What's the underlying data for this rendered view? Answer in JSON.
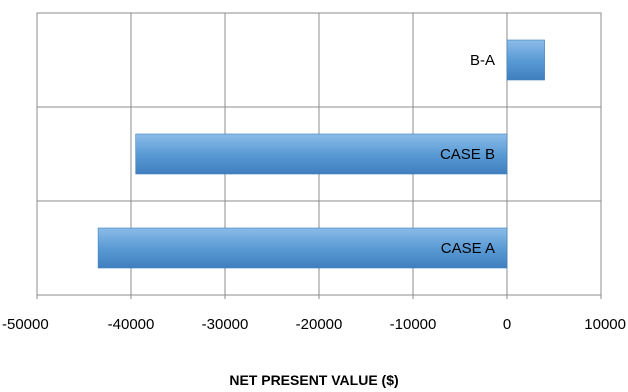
{
  "chart_data": {
    "type": "bar",
    "orientation": "horizontal",
    "categories": [
      "CASE A",
      "CASE B",
      "B-A"
    ],
    "values": [
      -43500,
      -39500,
      4000
    ],
    "xlabel": "NET PRESENT VALUE ($)",
    "ylabel": "",
    "xlim": [
      -50000,
      10000
    ],
    "xticks": [
      "-50000",
      "-40000",
      "-30000",
      "-20000",
      "-10000",
      "0",
      "10000"
    ],
    "grid": true,
    "legend": "none",
    "bar_color": "#5b9bd5",
    "bar_color_light": "#8bbce8",
    "bar_color_dark": "#3f7fbf"
  }
}
